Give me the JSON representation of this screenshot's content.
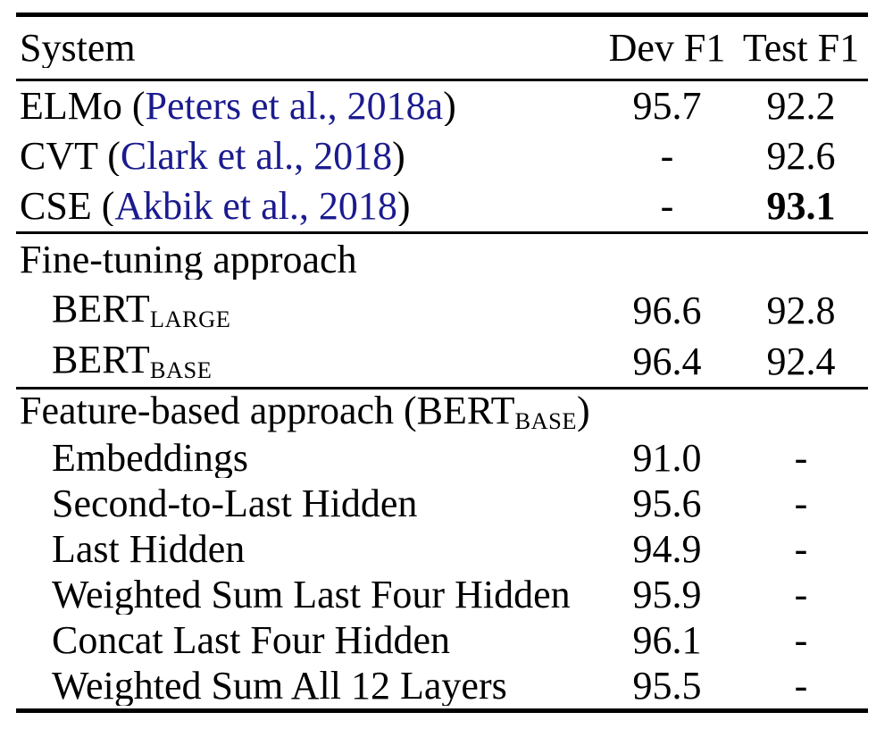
{
  "colors": {
    "citation_link": "#1b1b8f",
    "text": "#000000",
    "rule": "#000000"
  },
  "table": {
    "columns": [
      "System",
      "Dev F1",
      "Test F1"
    ],
    "sections": [
      {
        "rows": [
          {
            "pre": "ELMo (",
            "cite": "Peters et al., 2018a",
            "post": ")",
            "dev": "95.7",
            "test": "92.2"
          },
          {
            "pre": "CVT (",
            "cite": "Clark et al., 2018",
            "post": ")",
            "dev": "-",
            "test": "92.6"
          },
          {
            "pre": "CSE (",
            "cite": "Akbik et al., 2018",
            "post": ")",
            "dev": "-",
            "test": "93.1"
          }
        ]
      },
      {
        "header": "Fine-tuning approach",
        "rows": [
          {
            "name": "BERT",
            "sub": "LARGE",
            "dev": "96.6",
            "test": "92.8"
          },
          {
            "name": "BERT",
            "sub": "BASE",
            "dev": "96.4",
            "test": "92.4"
          }
        ]
      },
      {
        "header_pre": "Feature-based approach (BERT",
        "header_sub": "BASE",
        "header_post": ")",
        "rows": [
          {
            "name": "Embeddings",
            "dev": "91.0",
            "test": "-"
          },
          {
            "name": "Second-to-Last Hidden",
            "dev": "95.6",
            "test": "-"
          },
          {
            "name": "Last Hidden",
            "dev": "94.9",
            "test": "-"
          },
          {
            "name": "Weighted Sum Last Four Hidden",
            "dev": "95.9",
            "test": "-"
          },
          {
            "name": "Concat Last Four Hidden",
            "dev": "96.1",
            "test": "-"
          },
          {
            "name": "Weighted Sum All 12 Layers",
            "dev": "95.5",
            "test": "-"
          }
        ]
      }
    ]
  }
}
